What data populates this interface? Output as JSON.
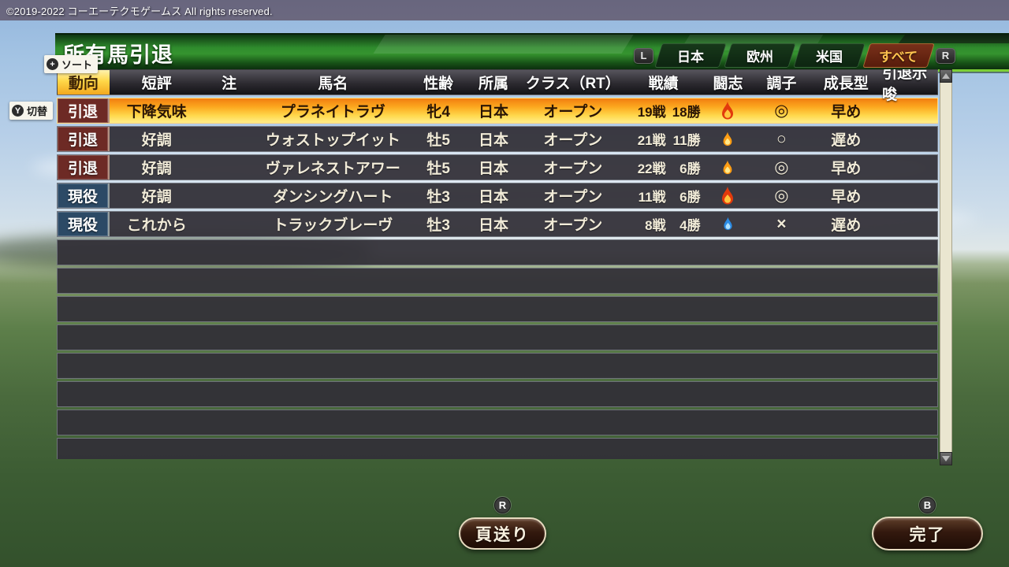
{
  "copyright": "©2019-2022 コーエーテクモゲームス All rights reserved.",
  "title_bar": {
    "title": "所有馬引退",
    "left_bumper": "L",
    "right_bumper": "R",
    "tabs": [
      {
        "label": "日本",
        "active": false
      },
      {
        "label": "欧州",
        "active": false
      },
      {
        "label": "米国",
        "active": false
      },
      {
        "label": "すべて",
        "active": true
      }
    ]
  },
  "hints": {
    "sort_button": "+",
    "sort_label": "ソート",
    "toggle_button": "Y",
    "toggle_label": "切替"
  },
  "table": {
    "columns": [
      "動向",
      "短評",
      "注",
      "馬名",
      "性齢",
      "所属",
      "クラス（RT）",
      "戦績",
      "闘志",
      "調子",
      "成長型",
      "引退示唆"
    ],
    "sorted_column": "動向",
    "rows": [
      {
        "trend": "引退",
        "trend_type": "retired",
        "comment": "下降気味",
        "note": "",
        "name": "プラネイトラヴ",
        "sex_age": "牝4",
        "affiliation": "日本",
        "class": "オープン",
        "starts": "19戦",
        "wins": "18勝",
        "spirit": "flame-red-large",
        "condition": "◎",
        "growth": "早め",
        "retire_hint": "",
        "selected": true
      },
      {
        "trend": "引退",
        "trend_type": "retired",
        "comment": "好調",
        "note": "",
        "name": "ウォストップイット",
        "sex_age": "牡5",
        "affiliation": "日本",
        "class": "オープン",
        "starts": "21戦",
        "wins": "11勝",
        "spirit": "flame-yellow-small",
        "condition": "○",
        "growth": "遅め",
        "retire_hint": "",
        "selected": false
      },
      {
        "trend": "引退",
        "trend_type": "retired",
        "comment": "好調",
        "note": "",
        "name": "ヴァレネストアワー",
        "sex_age": "牡5",
        "affiliation": "日本",
        "class": "オープン",
        "starts": "22戦",
        "wins": "6勝",
        "spirit": "flame-yellow-small",
        "condition": "◎",
        "growth": "早め",
        "retire_hint": "",
        "selected": false
      },
      {
        "trend": "現役",
        "trend_type": "active",
        "comment": "好調",
        "note": "",
        "name": "ダンシングハート",
        "sex_age": "牡3",
        "affiliation": "日本",
        "class": "オープン",
        "starts": "11戦",
        "wins": "6勝",
        "spirit": "flame-red-large",
        "condition": "◎",
        "growth": "早め",
        "retire_hint": "",
        "selected": false
      },
      {
        "trend": "現役",
        "trend_type": "active",
        "comment": "これから",
        "note": "",
        "name": "トラックブレーヴ",
        "sex_age": "牡3",
        "affiliation": "日本",
        "class": "オープン",
        "starts": "8戦",
        "wins": "4勝",
        "spirit": "flame-blue-small",
        "condition": "×",
        "growth": "遅め",
        "retire_hint": "",
        "selected": false
      }
    ],
    "empty_rows": 8
  },
  "footer": {
    "page_hint": "R",
    "page_label": "頁送り",
    "done_hint": "B",
    "done_label": "完了"
  },
  "colors": {
    "selected_row_top": "#f17d10",
    "selected_row_bottom": "#ffee8a",
    "retired_badge": "#6d2a25",
    "active_badge": "#2c4a66",
    "sorted_header": "#ffd748",
    "tab_active_bg": "#571c0b",
    "tab_active_text": "#ffc34e",
    "flame_red": "#e23a0c",
    "flame_yellow": "#ff9d14",
    "flame_blue": "#2b8be4"
  }
}
